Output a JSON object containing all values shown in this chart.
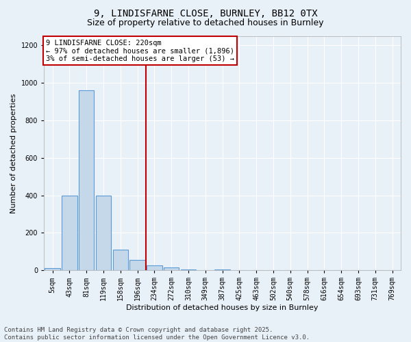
{
  "title_line1": "9, LINDISFARNE CLOSE, BURNLEY, BB12 0TX",
  "title_line2": "Size of property relative to detached houses in Burnley",
  "xlabel": "Distribution of detached houses by size in Burnley",
  "ylabel": "Number of detached properties",
  "categories": [
    "5sqm",
    "43sqm",
    "81sqm",
    "119sqm",
    "158sqm",
    "196sqm",
    "234sqm",
    "272sqm",
    "310sqm",
    "349sqm",
    "387sqm",
    "425sqm",
    "463sqm",
    "502sqm",
    "540sqm",
    "578sqm",
    "616sqm",
    "654sqm",
    "693sqm",
    "731sqm",
    "769sqm"
  ],
  "values": [
    10,
    400,
    960,
    400,
    110,
    55,
    25,
    15,
    4,
    0,
    3,
    0,
    0,
    0,
    0,
    0,
    0,
    0,
    0,
    0,
    0
  ],
  "bar_color": "#c5d8ea",
  "bar_edge_color": "#5b9bd5",
  "vline_x": 5.5,
  "vline_color": "#c00000",
  "annotation_line1": "9 LINDISFARNE CLOSE: 220sqm",
  "annotation_line2": "← 97% of detached houses are smaller (1,896)",
  "annotation_line3": "3% of semi-detached houses are larger (53) →",
  "annotation_box_color": "#ffffff",
  "annotation_box_edge": "#c00000",
  "ylim": [
    0,
    1250
  ],
  "yticks": [
    0,
    200,
    400,
    600,
    800,
    1000,
    1200
  ],
  "background_color": "#e8f0f8",
  "plot_bg_color": "#e8f0f8",
  "footer_line1": "Contains HM Land Registry data © Crown copyright and database right 2025.",
  "footer_line2": "Contains public sector information licensed under the Open Government Licence v3.0.",
  "title_fontsize": 10,
  "subtitle_fontsize": 9,
  "label_fontsize": 8,
  "tick_fontsize": 7,
  "annotation_fontsize": 7.5,
  "footer_fontsize": 6.5
}
